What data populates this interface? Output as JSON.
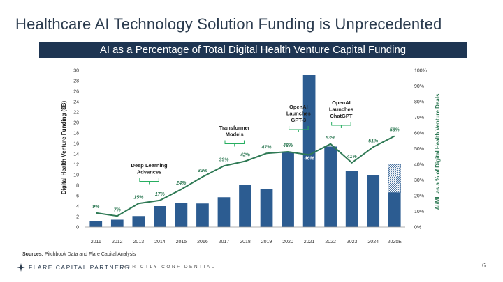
{
  "slide": {
    "title": "Healthcare AI Technology Solution Funding is Unprecedented",
    "banner": "AI as a Percentage of Total Digital Health Venture Capital Funding",
    "source_label": "Sources:",
    "source_text": " Pitchbook Data and Flare Capital Analysis",
    "logo": "FLARE CAPITAL PARTNERS",
    "confidential": "STRICTLY CONFIDENTIAL",
    "page_number": "6"
  },
  "colors": {
    "bar": "#2c5c91",
    "line": "#2f7a55",
    "accent": "#27ae60",
    "banner": "#1e3552",
    "text": "#333333"
  },
  "chart_data": {
    "type": "bar",
    "categories": [
      "2011",
      "2012",
      "2013",
      "2014",
      "2015",
      "2016",
      "2017",
      "2018",
      "2019",
      "2020",
      "2021",
      "2022",
      "2023",
      "2024",
      "2025E"
    ],
    "series": [
      {
        "name": "Digital Health Venture Funding ($B)",
        "axis": "left",
        "type": "bar",
        "values": [
          1.1,
          1.4,
          2.1,
          4.0,
          4.6,
          4.5,
          5.7,
          8.1,
          7.3,
          14.4,
          29.1,
          15.4,
          10.8,
          10.0,
          6.6
        ],
        "projected_extension": {
          "category": "2025E",
          "value": 12.0
        }
      },
      {
        "name": "AI/ML as a % of Digital Health Venture Deals",
        "axis": "right",
        "type": "line",
        "values": [
          9,
          7,
          15,
          17,
          24,
          32,
          39,
          42,
          47,
          48,
          46,
          53,
          41,
          51,
          58
        ],
        "labels": [
          "9%",
          "7%",
          "15%",
          "17%",
          "24%",
          "32%",
          "39%",
          "42%",
          "47%",
          "48%",
          "46%",
          "53%",
          "41%",
          "51%",
          "58%"
        ]
      }
    ],
    "ylabel": "Digital Health Venture Funding ($B)",
    "y2label": "AI/ML as a % of Digital Health Venture Deals",
    "ylim": [
      0,
      30
    ],
    "y2lim": [
      0,
      100
    ],
    "yticks": [
      "0",
      "2",
      "4",
      "6",
      "8",
      "10",
      "12",
      "14",
      "16",
      "18",
      "20",
      "22",
      "24",
      "26",
      "28",
      "30"
    ],
    "y2ticks": [
      "0%",
      "10%",
      "20%",
      "30%",
      "40%",
      "50%",
      "60%",
      "70%",
      "80%",
      "90%",
      "100%"
    ],
    "annotations": [
      {
        "lines": [
          "Deep Learning",
          "Advances"
        ],
        "year_index": 2.5,
        "bracket_width": 1
      },
      {
        "lines": [
          "Transformer",
          "Models"
        ],
        "year_index": 6.5,
        "bracket_width": 1
      },
      {
        "lines": [
          "OpenAI",
          "Launches",
          "GPT-3"
        ],
        "year_index": 9.5,
        "bracket_width": 1
      },
      {
        "lines": [
          "OpenAI",
          "Launches",
          "ChatGPT"
        ],
        "year_index": 11.5,
        "bracket_width": 1
      }
    ]
  }
}
